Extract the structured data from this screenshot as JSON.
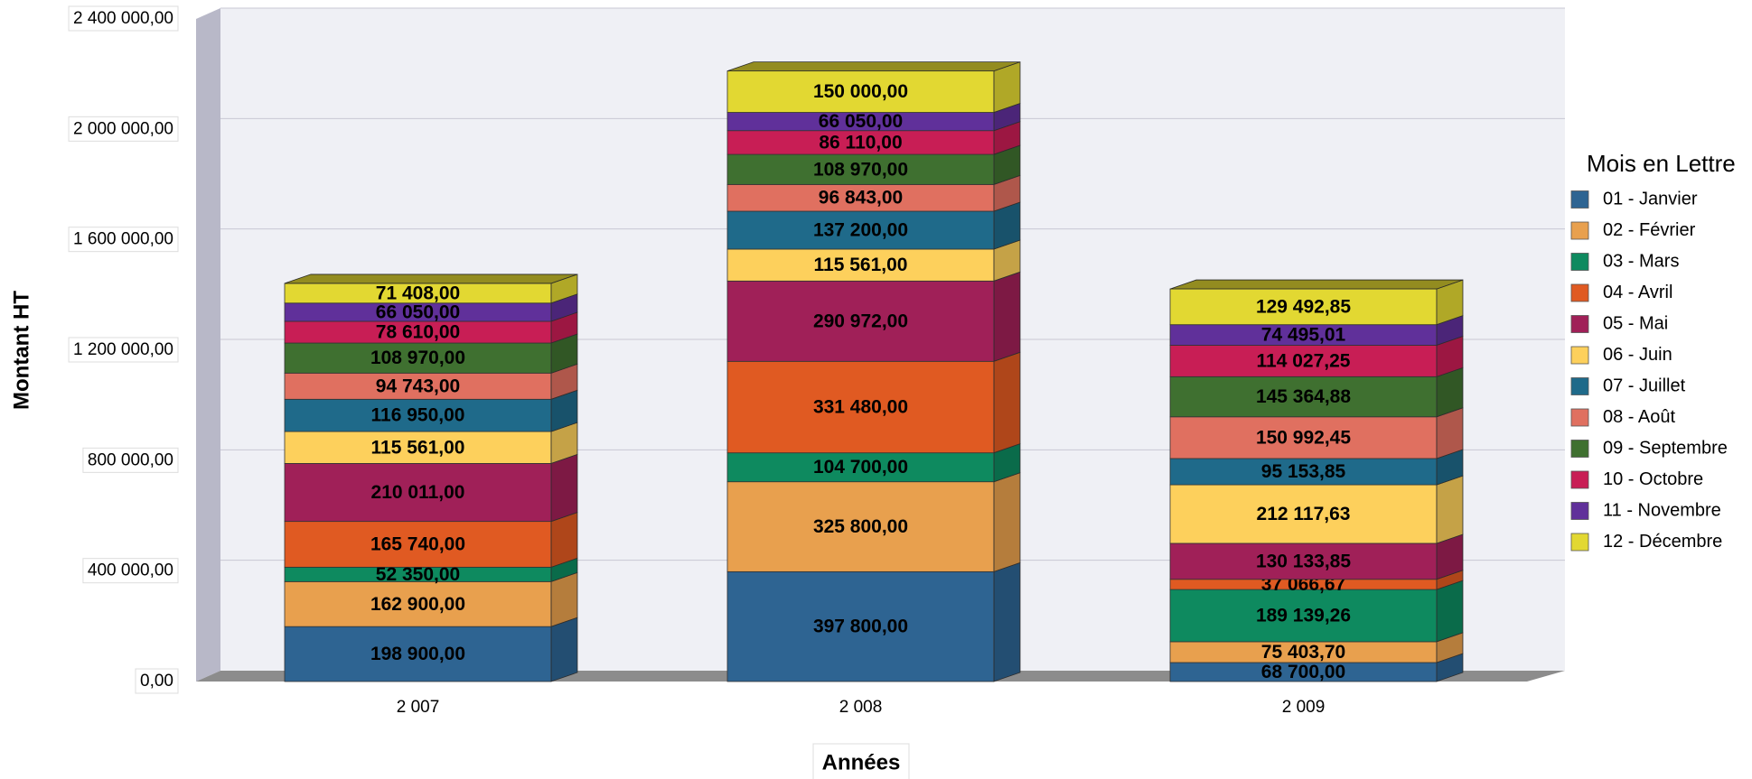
{
  "chart_data": {
    "type": "bar",
    "stacked": true,
    "categories": [
      "2 007",
      "2 008",
      "2 009"
    ],
    "x_label": "Années",
    "y_label": "Montant HT",
    "legend_title": "Mois en Lettre",
    "legend": "right",
    "grid": true,
    "ylim": [
      0,
      2400000
    ],
    "yticks": [
      {
        "value": 0,
        "label": "0,00"
      },
      {
        "value": 400000,
        "label": "400 000,00"
      },
      {
        "value": 800000,
        "label": "800 000,00"
      },
      {
        "value": 1200000,
        "label": "1 200 000,00"
      },
      {
        "value": 1600000,
        "label": "1 600 000,00"
      },
      {
        "value": 2000000,
        "label": "2 000 000,00"
      },
      {
        "value": 2400000,
        "label": "2 400 000,00"
      }
    ],
    "series": [
      {
        "name": "01 - Janvier",
        "color": "#2e6492",
        "values": [
          198900,
          397800,
          68700
        ],
        "value_labels": [
          "198 900,00",
          "397 800,00",
          "68 700,00"
        ]
      },
      {
        "name": "02 - Février",
        "color": "#e8a04e",
        "values": [
          162900,
          325800,
          75403.7
        ],
        "value_labels": [
          "162 900,00",
          "325 800,00",
          "75 403,70"
        ]
      },
      {
        "name": "03 - Mars",
        "color": "#0e8a5f",
        "values": [
          52350,
          104700,
          189139.26
        ],
        "value_labels": [
          "52 350,00",
          "104 700,00",
          "189 139,26"
        ]
      },
      {
        "name": "04 - Avril",
        "color": "#e05a22",
        "values": [
          165740,
          331480,
          37066.67
        ],
        "value_labels": [
          "165 740,00",
          "331 480,00",
          "37 066,67"
        ]
      },
      {
        "name": "05 - Mai",
        "color": "#a02058",
        "values": [
          210011,
          290972,
          130133.85
        ],
        "value_labels": [
          "210 011,00",
          "290 972,00",
          "130 133,85"
        ]
      },
      {
        "name": "06 - Juin",
        "color": "#fdd05c",
        "values": [
          115561,
          115561,
          212117.63
        ],
        "value_labels": [
          "115 561,00",
          "115 561,00",
          "212 117,63"
        ]
      },
      {
        "name": "07 - Juillet",
        "color": "#1f6a8a",
        "values": [
          116950,
          137200,
          95153.85
        ],
        "value_labels": [
          "116 950,00",
          "137 200,00",
          "95 153,85"
        ]
      },
      {
        "name": "08 - Août",
        "color": "#e07060",
        "values": [
          94743,
          96843,
          150992.45
        ],
        "value_labels": [
          "94 743,00",
          "96 843,00",
          "150 992,45"
        ]
      },
      {
        "name": "09 - Septembre",
        "color": "#3f7030",
        "values": [
          108970,
          108970,
          145364.88
        ],
        "value_labels": [
          "108 970,00",
          "108 970,00",
          "145 364,88"
        ]
      },
      {
        "name": "10 - Octobre",
        "color": "#c81e55",
        "values": [
          78610,
          86110,
          114027.25
        ],
        "value_labels": [
          "78 610,00",
          "86 110,00",
          "114 027,25"
        ]
      },
      {
        "name": "11 - Novembre",
        "color": "#60309a",
        "values": [
          66050,
          66050,
          74495.01
        ],
        "value_labels": [
          "66 050,00",
          "66 050,00",
          "74 495,01"
        ]
      },
      {
        "name": "12 - Décembre",
        "color": "#e2d832",
        "values": [
          71408,
          150000,
          129492.85
        ],
        "value_labels": [
          "71 408,00",
          "150 000,00",
          "129 492,85"
        ]
      }
    ]
  }
}
